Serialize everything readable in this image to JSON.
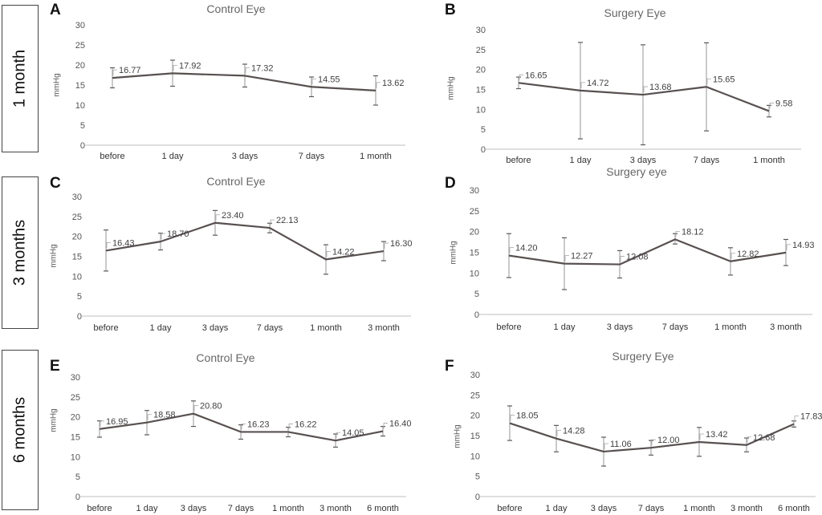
{
  "row_labels": [
    "1 month",
    "3 months",
    "6 months"
  ],
  "chart_data": [
    {
      "panel": "A",
      "type": "line",
      "title": "Control Eye",
      "ylabel": "mmHg",
      "xlabel": "",
      "ylim": [
        0,
        30
      ],
      "yticks": [
        0,
        5,
        10,
        15,
        20,
        25,
        30
      ],
      "categories": [
        "before",
        "1 day",
        "3 days",
        "7 days",
        "1 month"
      ],
      "values": [
        16.77,
        17.92,
        17.32,
        14.55,
        13.62
      ],
      "labels": [
        "16.77",
        "17.92",
        "17.32",
        "14.55",
        "13.62"
      ],
      "err_low": [
        14.3,
        14.7,
        14.5,
        12.1,
        10.0
      ],
      "err_high": [
        19.3,
        21.2,
        20.2,
        17.0,
        17.3
      ]
    },
    {
      "panel": "B",
      "type": "line",
      "title": "Surgery Eye",
      "ylabel": "mmHg",
      "xlabel": "",
      "ylim": [
        0,
        30
      ],
      "yticks": [
        0,
        5,
        10,
        15,
        20,
        25,
        30
      ],
      "categories": [
        "before",
        "1 day",
        "3 days",
        "7 days",
        "1 month"
      ],
      "values": [
        16.65,
        14.72,
        13.68,
        15.65,
        9.58
      ],
      "labels": [
        "16.65",
        "14.72",
        "13.68",
        "15.65",
        "9.58"
      ],
      "err_low": [
        15.2,
        2.6,
        1.1,
        4.6,
        8.1
      ],
      "err_high": [
        18.1,
        26.8,
        26.2,
        26.7,
        11.0
      ]
    },
    {
      "panel": "C",
      "type": "line",
      "title": "Control Eye",
      "ylabel": "mmHg",
      "xlabel": "",
      "ylim": [
        0,
        30
      ],
      "yticks": [
        0,
        5,
        10,
        15,
        20,
        25,
        30
      ],
      "categories": [
        "before",
        "1 day",
        "3 days",
        "7 days",
        "1 month",
        "3 month"
      ],
      "values": [
        16.43,
        18.7,
        23.4,
        22.13,
        14.22,
        16.3
      ],
      "labels": [
        "16.43",
        "18.70",
        "23.40",
        "22.13",
        "14.22",
        "16.30"
      ],
      "err_low": [
        11.3,
        16.6,
        20.3,
        20.9,
        10.5,
        13.9
      ],
      "err_high": [
        21.6,
        20.8,
        26.5,
        23.3,
        17.9,
        18.7
      ]
    },
    {
      "panel": "D",
      "type": "line",
      "title": "Surgery eye",
      "ylabel": "mmHg",
      "xlabel": "",
      "ylim": [
        0,
        30
      ],
      "yticks": [
        0,
        5,
        10,
        15,
        20,
        25,
        30
      ],
      "categories": [
        "before",
        "1 day",
        "3 days",
        "7 days",
        "1 month",
        "3 month"
      ],
      "values": [
        14.2,
        12.27,
        12.08,
        18.12,
        12.82,
        14.93
      ],
      "labels": [
        "14.20",
        "12.27",
        "12.08",
        "18.12",
        "12.82",
        "14.93"
      ],
      "err_low": [
        8.9,
        6.0,
        8.8,
        17.0,
        9.5,
        11.8
      ],
      "err_high": [
        19.5,
        18.5,
        15.4,
        19.5,
        16.1,
        18.1
      ]
    },
    {
      "panel": "E",
      "type": "line",
      "title": "Control Eye",
      "ylabel": "mmHg",
      "xlabel": "",
      "ylim": [
        0,
        30
      ],
      "yticks": [
        0,
        5,
        10,
        15,
        20,
        25,
        30
      ],
      "categories": [
        "before",
        "1 day",
        "3 days",
        "7 days",
        "1 month",
        "3 month",
        "6 month"
      ],
      "values": [
        16.95,
        18.58,
        20.8,
        16.23,
        16.22,
        14.05,
        16.4
      ],
      "labels": [
        "16.95",
        "18.58",
        "20.80",
        "16.23",
        "16.22",
        "14.05",
        "16.40"
      ],
      "err_low": [
        14.9,
        15.5,
        17.6,
        14.4,
        15.0,
        12.4,
        15.2
      ],
      "err_high": [
        19.0,
        21.6,
        24.0,
        18.0,
        17.4,
        15.7,
        17.6
      ]
    },
    {
      "panel": "F",
      "type": "line",
      "title": "Surgery Eye",
      "ylabel": "mmHg",
      "xlabel": "",
      "ylim": [
        0,
        30
      ],
      "yticks": [
        0,
        5,
        10,
        15,
        20,
        25,
        30
      ],
      "categories": [
        "before",
        "1 day",
        "3 days",
        "7 days",
        "1 month",
        "3 month",
        "6 month"
      ],
      "values": [
        18.05,
        14.28,
        11.06,
        12.0,
        13.42,
        12.68,
        17.83
      ],
      "labels": [
        "18.05",
        "14.28",
        "11.06",
        "12.00",
        "13.42",
        "12.68",
        "17.83"
      ],
      "err_low": [
        13.8,
        11.0,
        7.5,
        10.2,
        9.9,
        11.0,
        17.1
      ],
      "err_high": [
        22.3,
        17.5,
        14.6,
        13.8,
        17.0,
        14.4,
        18.6
      ]
    }
  ]
}
